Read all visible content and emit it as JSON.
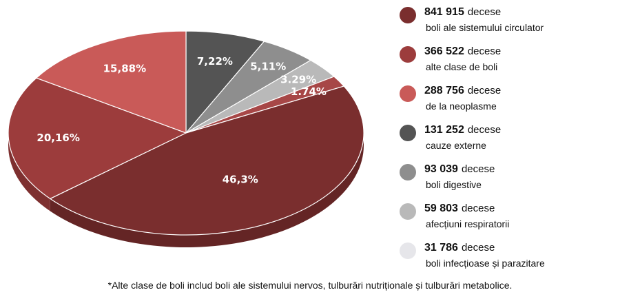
{
  "chart_data": {
    "type": "pie",
    "slices": [
      {
        "value_label": "841 915",
        "unit": "decese",
        "description": "boli ale sistemului circulator",
        "percent": 46.3,
        "percent_label": "46,3%",
        "color": "#7a2e2e",
        "side_color": "#642525"
      },
      {
        "value_label": "366 522",
        "unit": "decese",
        "description": "alte clase de boli",
        "percent": 20.16,
        "percent_label": "20,16%",
        "color": "#9c3c3c",
        "side_color": "#7e3030"
      },
      {
        "value_label": "288 756",
        "unit": "decese",
        "description": "de la neoplasme",
        "percent": 15.88,
        "percent_label": "15,88%",
        "color": "#c95a58",
        "side_color": "#a84a49"
      },
      {
        "value_label": "131 252",
        "unit": "decese",
        "description": "cauze externe",
        "percent": 7.22,
        "percent_label": "7,22%",
        "color": "#545454",
        "side_color": "#444444"
      },
      {
        "value_label": "93 039",
        "unit": "decese",
        "description": "boli digestive",
        "percent": 5.11,
        "percent_label": "5,11%",
        "color": "#8e8e8e",
        "side_color": "#767676"
      },
      {
        "value_label": "59 803",
        "unit": "decese",
        "description": "afecțiuni respiratorii",
        "percent": 3.29,
        "percent_label": "3.29%",
        "color": "#b9b9b9",
        "side_color": "#9e9e9e"
      },
      {
        "value_label": "31 786",
        "unit": "decese",
        "description": "boli infecțioase și parazitare",
        "percent": 1.74,
        "percent_label": "1.74%",
        "color": "#e6e6ea",
        "side_color": "#cfcfd4"
      }
    ]
  },
  "pie_overrides": {
    "small_slice_color": "#a74747",
    "small_slice_side": "#8a3a3a"
  },
  "footnote": "*Alte clase de boli includ boli ale sistemului nervos, tulburări nutriționale și tulburări metabolice."
}
